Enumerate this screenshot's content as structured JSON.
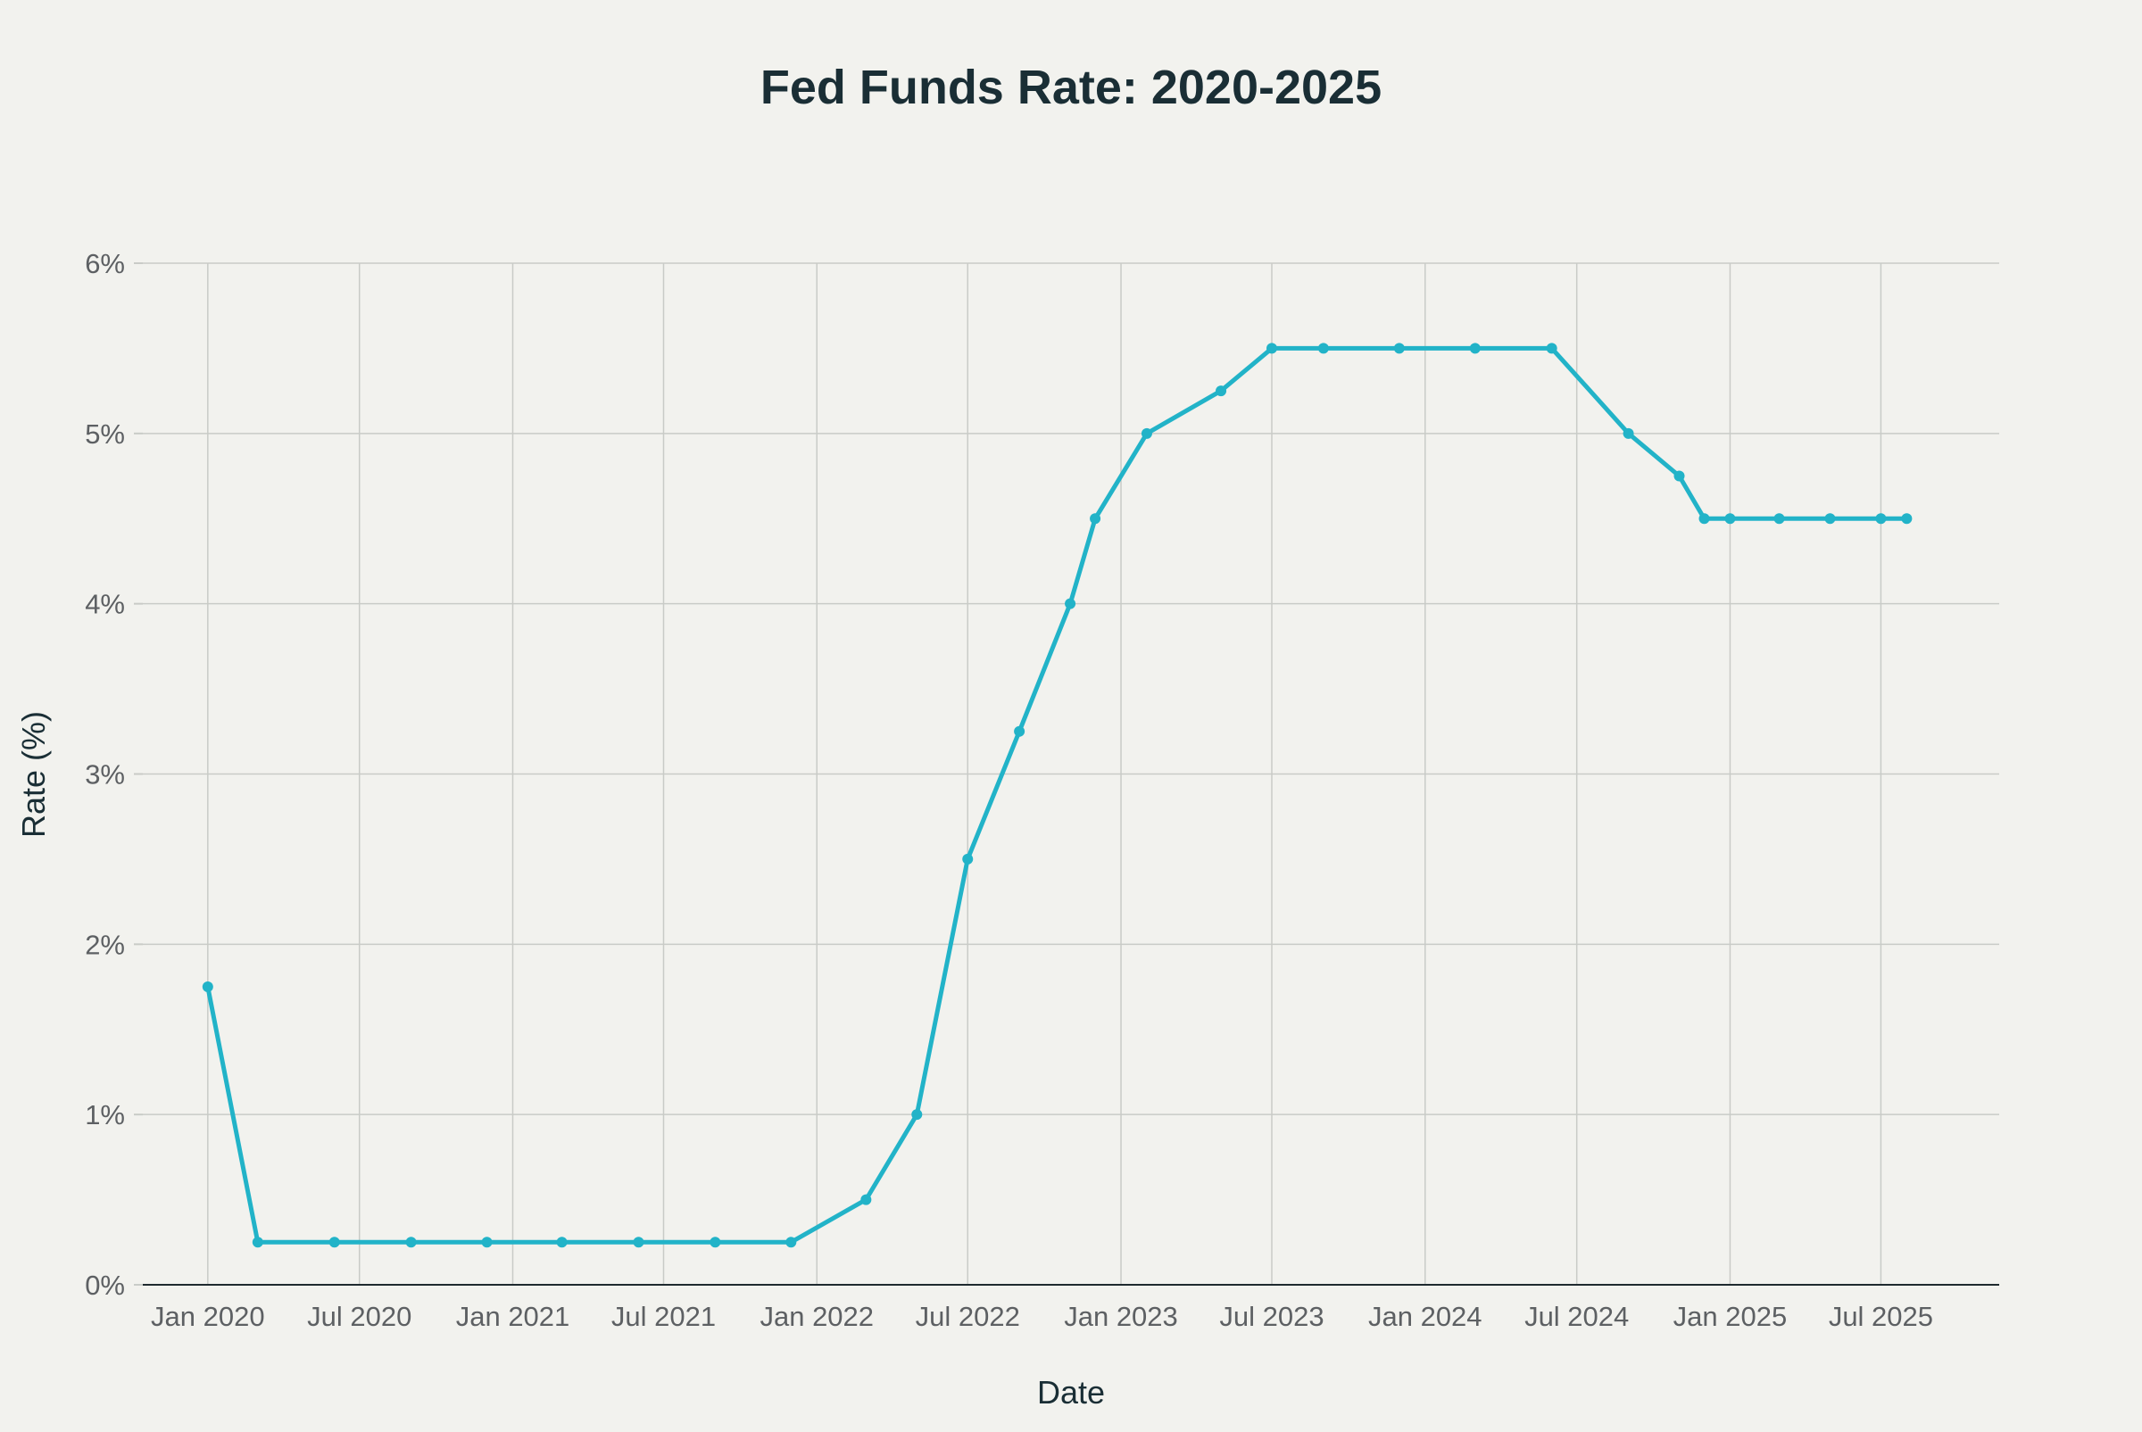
{
  "chart_data": {
    "type": "line",
    "title": "Fed Funds Rate: 2020-2025",
    "xlabel": "Date",
    "ylabel": "Rate (%)",
    "x_axis_type": "date",
    "ylim": [
      0,
      6
    ],
    "yticks": [
      0,
      1,
      2,
      3,
      4,
      5,
      6
    ],
    "ytick_labels": [
      "0%",
      "1%",
      "2%",
      "3%",
      "4%",
      "5%",
      "6%"
    ],
    "xticks": [
      "2020-01-01",
      "2020-07-01",
      "2021-01-01",
      "2021-07-01",
      "2022-01-01",
      "2022-07-01",
      "2023-01-01",
      "2023-07-01",
      "2024-01-01",
      "2024-07-01",
      "2025-01-01",
      "2025-07-01"
    ],
    "xtick_labels": [
      "Jan 2020",
      "Jul 2020",
      "Jan 2021",
      "Jul 2021",
      "Jan 2022",
      "Jul 2022",
      "Jan 2023",
      "Jul 2023",
      "Jan 2024",
      "Jul 2024",
      "Jan 2025",
      "Jul 2025"
    ],
    "xlim": [
      "2019-10-15",
      "2025-11-20"
    ],
    "grid": true,
    "legend": false,
    "series": [
      {
        "color": "#22b3c8",
        "x": [
          "2020-01-01",
          "2020-03-01",
          "2020-06-01",
          "2020-09-01",
          "2020-12-01",
          "2021-03-01",
          "2021-06-01",
          "2021-09-01",
          "2021-12-01",
          "2022-03-01",
          "2022-05-01",
          "2022-07-01",
          "2022-09-01",
          "2022-11-01",
          "2022-12-01",
          "2023-02-01",
          "2023-05-01",
          "2023-07-01",
          "2023-09-01",
          "2023-12-01",
          "2024-03-01",
          "2024-06-01",
          "2024-09-01",
          "2024-11-01",
          "2024-12-01",
          "2025-01-01",
          "2025-03-01",
          "2025-05-01",
          "2025-07-01",
          "2025-08-01"
        ],
        "values": [
          1.75,
          0.25,
          0.25,
          0.25,
          0.25,
          0.25,
          0.25,
          0.25,
          0.25,
          0.5,
          1.0,
          2.5,
          3.25,
          4.0,
          4.5,
          5.0,
          5.25,
          5.5,
          5.5,
          5.5,
          5.5,
          5.5,
          5.0,
          4.75,
          4.5,
          4.5,
          4.5,
          4.5,
          4.5,
          4.5
        ]
      }
    ]
  }
}
